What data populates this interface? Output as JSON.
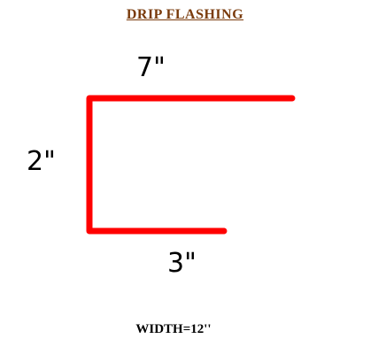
{
  "title": {
    "text": "DRIP FLASHING",
    "color": "#7a3b0c"
  },
  "profile": {
    "stroke_color": "#ff0000"
  },
  "dimensions": {
    "top": "7\"",
    "left": "2\"",
    "bottom": "3\""
  },
  "width_note": "WIDTH=12''"
}
